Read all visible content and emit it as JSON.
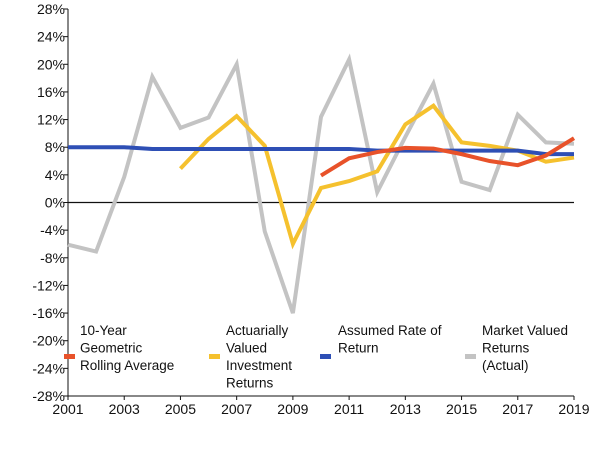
{
  "chart_data": {
    "type": "line",
    "title": "",
    "xlabel": "",
    "ylabel": "",
    "xlim": [
      2001,
      2019
    ],
    "ylim": [
      -28,
      28
    ],
    "x_ticks": [
      "2001",
      "2003",
      "2005",
      "2007",
      "2009",
      "2011",
      "2013",
      "2015",
      "2017",
      "2019"
    ],
    "y_ticks": [
      "28%",
      "24%",
      "20%",
      "16%",
      "12%",
      "8%",
      "4%",
      "0%",
      "-4%",
      "-8%",
      "-12%",
      "-16%",
      "-20%",
      "-24%",
      "-28%"
    ],
    "y_tick_values": [
      28,
      24,
      20,
      16,
      12,
      8,
      4,
      0,
      -4,
      -8,
      -12,
      -16,
      -20,
      -24,
      -28
    ],
    "zero_line": true,
    "grid": false,
    "legend_position": "bottom-inside",
    "series": [
      {
        "name": "10-Year Geometric Rolling Average",
        "legend_lines": [
          "10-Year",
          "Geometric",
          "Rolling Average"
        ],
        "color": "#E8522A",
        "points": [
          [
            2010,
            3.9
          ],
          [
            2011,
            6.4
          ],
          [
            2012,
            7.3
          ],
          [
            2013,
            7.9
          ],
          [
            2014,
            7.8
          ],
          [
            2015,
            7.0
          ],
          [
            2016,
            6.0
          ],
          [
            2017,
            5.4
          ],
          [
            2018,
            6.8
          ],
          [
            2019,
            9.3
          ]
        ]
      },
      {
        "name": "Actuarially Valued Investment Returns",
        "legend_lines": [
          "Actuarially",
          "Valued",
          "Investment",
          "Returns"
        ],
        "color": "#F5C12E",
        "points": [
          [
            2005,
            4.9
          ],
          [
            2006,
            9.2
          ],
          [
            2007,
            12.5
          ],
          [
            2008,
            8.2
          ],
          [
            2009,
            -6.0
          ],
          [
            2010,
            2.1
          ],
          [
            2011,
            3.1
          ],
          [
            2012,
            4.5
          ],
          [
            2013,
            11.3
          ],
          [
            2014,
            14.0
          ],
          [
            2015,
            8.7
          ],
          [
            2016,
            8.2
          ],
          [
            2017,
            7.5
          ],
          [
            2018,
            5.9
          ],
          [
            2019,
            6.5
          ]
        ]
      },
      {
        "name": "Assumed Rate of Return",
        "legend_lines": [
          "Assumed Rate of",
          "Return"
        ],
        "color": "#2E4FB5",
        "points": [
          [
            2001,
            8.0
          ],
          [
            2002,
            8.0
          ],
          [
            2003,
            8.0
          ],
          [
            2004,
            7.75
          ],
          [
            2005,
            7.75
          ],
          [
            2006,
            7.75
          ],
          [
            2007,
            7.75
          ],
          [
            2008,
            7.75
          ],
          [
            2009,
            7.75
          ],
          [
            2010,
            7.75
          ],
          [
            2011,
            7.75
          ],
          [
            2012,
            7.5
          ],
          [
            2013,
            7.5
          ],
          [
            2014,
            7.5
          ],
          [
            2015,
            7.5
          ],
          [
            2016,
            7.5
          ],
          [
            2017,
            7.5
          ],
          [
            2018,
            7.0
          ],
          [
            2019,
            7.0
          ]
        ]
      },
      {
        "name": "Market Valued Returns (Actual)",
        "legend_lines": [
          "Market Valued",
          "Returns",
          "(Actual)"
        ],
        "color": "#C3C3C3",
        "points": [
          [
            2001,
            -6.1
          ],
          [
            2002,
            -7.1
          ],
          [
            2003,
            3.7
          ],
          [
            2004,
            18.2
          ],
          [
            2005,
            10.8
          ],
          [
            2006,
            12.3
          ],
          [
            2007,
            20.0
          ],
          [
            2008,
            -4.2
          ],
          [
            2009,
            -16.0
          ],
          [
            2010,
            12.4
          ],
          [
            2011,
            20.7
          ],
          [
            2012,
            1.5
          ],
          [
            2013,
            9.5
          ],
          [
            2014,
            17.2
          ],
          [
            2015,
            3.0
          ],
          [
            2016,
            1.8
          ],
          [
            2017,
            12.7
          ],
          [
            2018,
            8.7
          ],
          [
            2019,
            8.5
          ]
        ]
      }
    ],
    "colors": {
      "axis": "#111111",
      "zero_line": "#111111",
      "text": "#111111",
      "background": "#ffffff"
    }
  }
}
